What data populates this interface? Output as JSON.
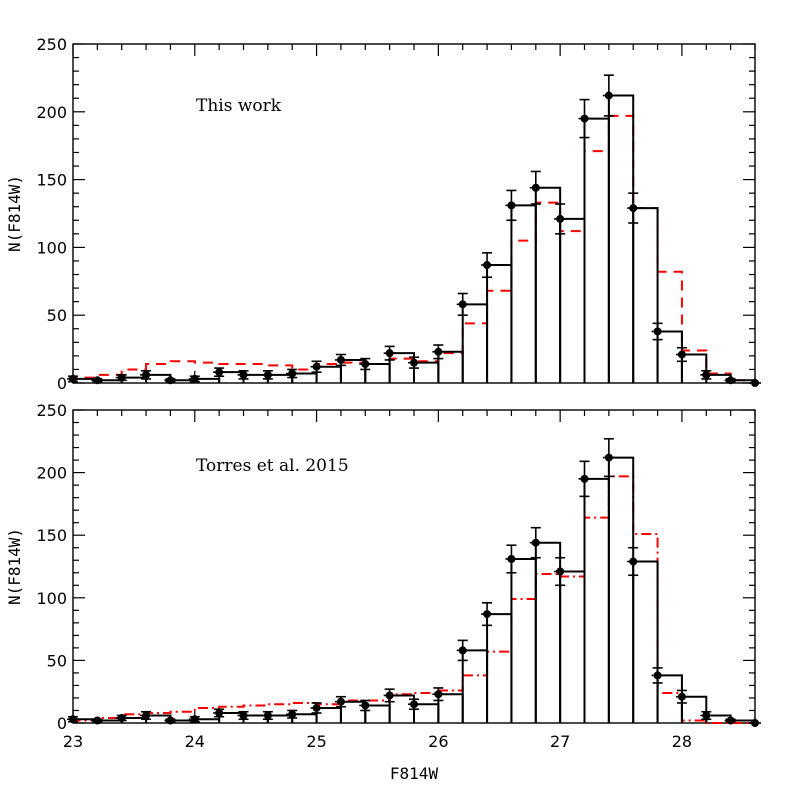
{
  "chart_data": [
    {
      "type": "histogram",
      "annotation": "This work",
      "xlabel": "",
      "ylabel": "N(F814W)",
      "xlim": [
        23,
        28.6
      ],
      "ylim": [
        0,
        250
      ],
      "yticks": [
        0,
        50,
        100,
        150,
        200,
        250
      ],
      "xticks": [],
      "bins": [
        [
          23.0,
          23.2
        ],
        [
          23.2,
          23.4
        ],
        [
          23.4,
          23.6
        ],
        [
          23.6,
          23.8
        ],
        [
          23.8,
          24.0
        ],
        [
          24.0,
          24.2
        ],
        [
          24.2,
          24.4
        ],
        [
          24.4,
          24.6
        ],
        [
          24.6,
          24.8
        ],
        [
          24.8,
          25.0
        ],
        [
          25.0,
          25.2
        ],
        [
          25.2,
          25.4
        ],
        [
          25.4,
          25.6
        ],
        [
          25.6,
          25.8
        ],
        [
          25.8,
          26.0
        ],
        [
          26.0,
          26.2
        ],
        [
          26.2,
          26.4
        ],
        [
          26.4,
          26.6
        ],
        [
          26.6,
          26.8
        ],
        [
          26.8,
          27.0
        ],
        [
          27.0,
          27.2
        ],
        [
          27.2,
          27.4
        ],
        [
          27.4,
          27.6
        ],
        [
          27.6,
          27.8
        ],
        [
          27.8,
          28.0
        ],
        [
          28.0,
          28.2
        ],
        [
          28.2,
          28.4
        ],
        [
          28.4,
          28.6
        ]
      ],
      "series": [
        {
          "style": "solid-black-histogram-with-errorbars",
          "color": "#000000",
          "x": [
            23.0,
            23.2,
            23.4,
            23.6,
            23.8,
            24.0,
            24.2,
            24.4,
            24.6,
            24.8,
            25.0,
            25.2,
            25.4,
            25.6,
            25.8,
            26.0,
            26.2,
            26.4,
            26.6,
            26.8,
            27.0,
            27.2,
            27.4,
            27.6,
            27.8,
            28.0,
            28.2,
            28.4,
            28.6
          ],
          "values": [
            3,
            2,
            4,
            6,
            2,
            3,
            8,
            6,
            6,
            7,
            12,
            17,
            14,
            22,
            15,
            23,
            58,
            87,
            131,
            144,
            121,
            195,
            212,
            129,
            38,
            21,
            6,
            2,
            0
          ],
          "errors": [
            2,
            1,
            2,
            3,
            1,
            2,
            3,
            3,
            3,
            3,
            4,
            4,
            4,
            5,
            4,
            5,
            8,
            9,
            11,
            12,
            11,
            14,
            15,
            11,
            6,
            5,
            3,
            1,
            0
          ]
        },
        {
          "style": "dashed-red-histogram",
          "color": "#ff0000",
          "values": [
            4,
            6,
            10,
            14,
            16,
            15,
            14,
            14,
            13,
            10,
            14,
            15,
            14,
            18,
            16,
            22,
            44,
            68,
            105,
            133,
            112,
            171,
            197,
            129,
            82,
            24,
            7,
            2
          ]
        }
      ]
    },
    {
      "type": "histogram",
      "annotation": "Torres et al. 2015",
      "xlabel": "F814W",
      "ylabel": "N(F814W)",
      "xlim": [
        23,
        28.6
      ],
      "ylim": [
        0,
        250
      ],
      "yticks": [
        0,
        50,
        100,
        150,
        200,
        250
      ],
      "xticks": [
        23,
        24,
        25,
        26,
        27,
        28
      ],
      "bins": [
        [
          23.0,
          23.2
        ],
        [
          23.2,
          23.4
        ],
        [
          23.4,
          23.6
        ],
        [
          23.6,
          23.8
        ],
        [
          23.8,
          24.0
        ],
        [
          24.0,
          24.2
        ],
        [
          24.2,
          24.4
        ],
        [
          24.4,
          24.6
        ],
        [
          24.6,
          24.8
        ],
        [
          24.8,
          25.0
        ],
        [
          25.0,
          25.2
        ],
        [
          25.2,
          25.4
        ],
        [
          25.4,
          25.6
        ],
        [
          25.6,
          25.8
        ],
        [
          25.8,
          26.0
        ],
        [
          26.0,
          26.2
        ],
        [
          26.2,
          26.4
        ],
        [
          26.4,
          26.6
        ],
        [
          26.6,
          26.8
        ],
        [
          26.8,
          27.0
        ],
        [
          27.0,
          27.2
        ],
        [
          27.2,
          27.4
        ],
        [
          27.4,
          27.6
        ],
        [
          27.6,
          27.8
        ],
        [
          27.8,
          28.0
        ],
        [
          28.0,
          28.2
        ],
        [
          28.2,
          28.4
        ],
        [
          28.4,
          28.6
        ]
      ],
      "series": [
        {
          "style": "solid-black-histogram-with-errorbars",
          "color": "#000000",
          "x": [
            23.0,
            23.2,
            23.4,
            23.6,
            23.8,
            24.0,
            24.2,
            24.4,
            24.6,
            24.8,
            25.0,
            25.2,
            25.4,
            25.6,
            25.8,
            26.0,
            26.2,
            26.4,
            26.6,
            26.8,
            27.0,
            27.2,
            27.4,
            27.6,
            27.8,
            28.0,
            28.2,
            28.4,
            28.6
          ],
          "values": [
            3,
            2,
            4,
            6,
            2,
            3,
            8,
            6,
            6,
            7,
            12,
            17,
            14,
            22,
            15,
            23,
            58,
            87,
            131,
            144,
            121,
            195,
            212,
            129,
            38,
            21,
            6,
            2,
            0
          ],
          "errors": [
            2,
            1,
            2,
            3,
            1,
            2,
            3,
            3,
            3,
            3,
            4,
            4,
            4,
            5,
            4,
            5,
            8,
            9,
            11,
            12,
            11,
            14,
            15,
            11,
            6,
            5,
            3,
            1,
            0
          ]
        },
        {
          "style": "dashdot-red-histogram",
          "color": "#ff0000",
          "values": [
            2,
            4,
            7,
            8,
            9,
            12,
            13,
            14,
            15,
            16,
            15,
            18,
            18,
            23,
            24,
            26,
            38,
            57,
            99,
            119,
            117,
            164,
            197,
            151,
            24,
            2,
            0,
            0
          ]
        }
      ]
    }
  ]
}
